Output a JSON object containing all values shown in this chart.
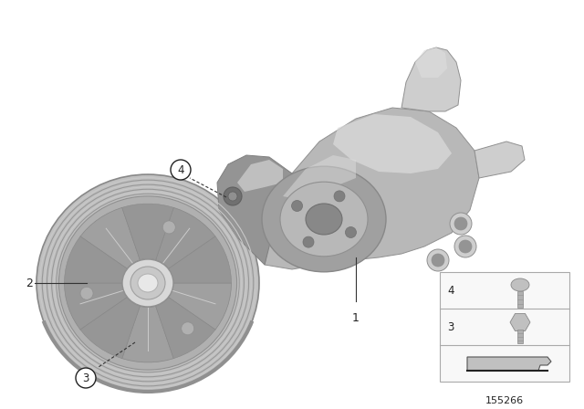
{
  "bg_color": "#ffffff",
  "diagram_number": "155266",
  "text_color": "#222222",
  "circle_bg": "#ffffff",
  "circle_border": "#222222",
  "annotation_fontsize": 9,
  "diag_num_fontsize": 8,
  "pump_body_color": "#b2b2b2",
  "pump_light": "#d0d0d0",
  "pump_dark": "#888888",
  "pump_highlight": "#e0e0e0",
  "pulley_mid": "#a8a8a8",
  "pulley_rim": "#b8b8b8",
  "pulley_dark": "#888888",
  "legend_bg": "#f8f8f8",
  "legend_border": "#aaaaaa"
}
